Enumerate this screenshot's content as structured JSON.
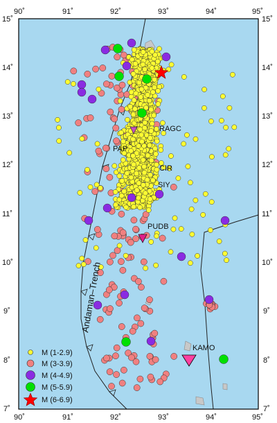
{
  "map": {
    "ocean_color": "#a8d8f0",
    "frame_color": "#000000",
    "lon_ticks": [
      "90˚",
      "91˚",
      "92˚",
      "93˚",
      "94˚",
      "95˚"
    ],
    "lat_ticks": [
      "15˚",
      "14˚",
      "13˚",
      "12˚",
      "11˚",
      "10˚",
      "9˚",
      "8˚",
      "7˚"
    ],
    "trench_label": "Andaman–Trench",
    "station_labels": [
      "RAGC",
      "PAP",
      "CIR",
      "SIY",
      "PUDB"
    ],
    "kamo_label": "KAMO"
  },
  "legend": {
    "items": [
      {
        "label": "M (1-2.9)",
        "color": "#ffff33",
        "shape": "circle-small"
      },
      {
        "label": "M (3-3.9)",
        "color": "#f08080",
        "shape": "circle"
      },
      {
        "label": "M (4-4.9)",
        "color": "#8a2be2",
        "shape": "circle-large"
      },
      {
        "label": "M (5-5.9)",
        "color": "#00e000",
        "shape": "circle-large"
      },
      {
        "label": "M (6-6.9)",
        "color": "#ff0000",
        "shape": "star"
      }
    ]
  }
}
